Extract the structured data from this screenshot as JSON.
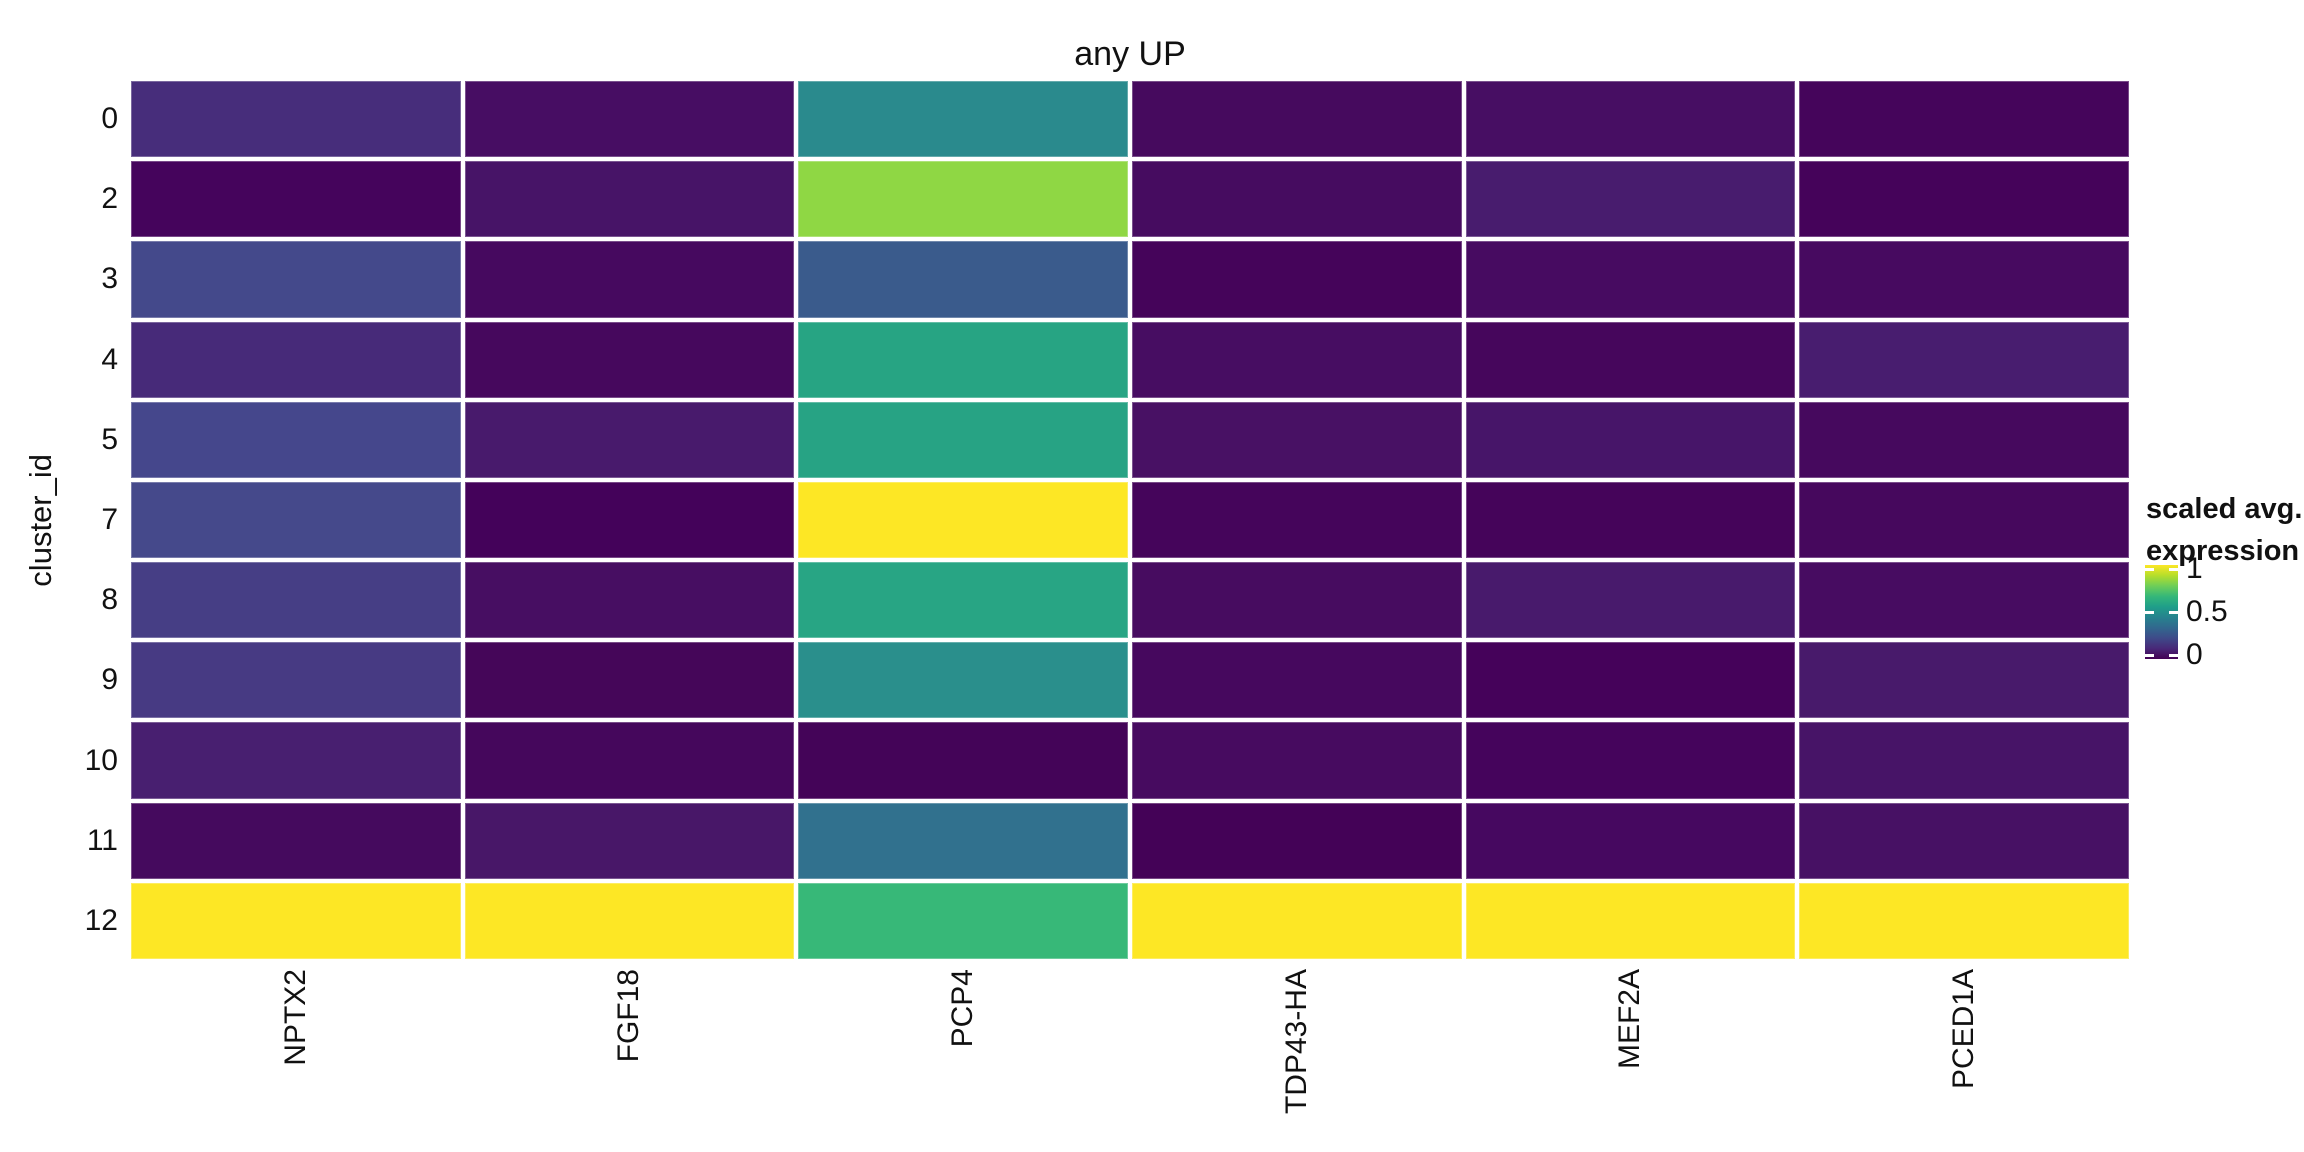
{
  "page": {
    "background": "#ffffff"
  },
  "chart_data": {
    "type": "heatmap",
    "title": "any UP",
    "xlabel": "",
    "ylabel": "cluster_id",
    "colormap": "viridis",
    "rows": [
      "0",
      "2",
      "3",
      "4",
      "5",
      "7",
      "8",
      "9",
      "10",
      "11",
      "12"
    ],
    "columns": [
      "NPTX2",
      "FGF18",
      "PCP4",
      "TDP43-HA",
      "MEF2A",
      "PCED1A"
    ],
    "values": [
      [
        0.14,
        0.05,
        0.46,
        0.03,
        0.05,
        0.01
      ],
      [
        0.01,
        0.07,
        0.82,
        0.04,
        0.1,
        0.01
      ],
      [
        0.24,
        0.03,
        0.3,
        0.01,
        0.03,
        0.03
      ],
      [
        0.13,
        0.02,
        0.6,
        0.04,
        0.02,
        0.1
      ],
      [
        0.23,
        0.09,
        0.6,
        0.06,
        0.07,
        0.03
      ],
      [
        0.24,
        0.005,
        1.0,
        0.01,
        0.01,
        0.02
      ],
      [
        0.19,
        0.05,
        0.6,
        0.04,
        0.09,
        0.04
      ],
      [
        0.18,
        0.02,
        0.48,
        0.02,
        0.005,
        0.09
      ],
      [
        0.1,
        0.02,
        0.01,
        0.03,
        0.01,
        0.07
      ],
      [
        0.04,
        0.08,
        0.38,
        0.005,
        0.03,
        0.05
      ],
      [
        1.0,
        1.0,
        0.68,
        1.0,
        1.0,
        1.0
      ]
    ],
    "cell_colors": [
      [
        "#472d7b",
        "#470d63",
        "#2a8a8d",
        "#460a5e",
        "#470e63",
        "#45055b"
      ],
      [
        "#45045c",
        "#471467",
        "#8fd744",
        "#460c60",
        "#481c6e",
        "#45035a"
      ],
      [
        "#44498b",
        "#46095f",
        "#3a5b8c",
        "#45045a",
        "#470b61",
        "#470a60"
      ],
      [
        "#472a79",
        "#46085d",
        "#27a483",
        "#470d62",
        "#46065c",
        "#481d6f"
      ],
      [
        "#45478c",
        "#481a6c",
        "#27a384",
        "#481164",
        "#471569",
        "#46095e"
      ],
      [
        "#45498b",
        "#44025a",
        "#fde725",
        "#45055b",
        "#45045a",
        "#46085d"
      ],
      [
        "#463e85",
        "#470e62",
        "#28a584",
        "#470c60",
        "#481a6c",
        "#470c61"
      ],
      [
        "#473a83",
        "#450659",
        "#2a8f8c",
        "#46085e",
        "#45025a",
        "#481a6b"
      ],
      [
        "#481f70",
        "#45075c",
        "#440458",
        "#470b60",
        "#45045c",
        "#471467"
      ],
      [
        "#450a5e",
        "#481768",
        "#31718e",
        "#440257",
        "#460860",
        "#471164"
      ],
      [
        "#fde725",
        "#fde725",
        "#37b878",
        "#fde725",
        "#fde725",
        "#fde725"
      ]
    ],
    "color_scale": {
      "min": 0,
      "max": 1,
      "min_color": "#440154",
      "max_color": "#fde725"
    },
    "legend": {
      "title_line1": "scaled avg.",
      "title_line2": "expression",
      "ticks": [
        "1",
        "0.5",
        "0"
      ],
      "tick_values": [
        1,
        0.5,
        0
      ],
      "gradient_bottom_to_top": [
        "#440154",
        "#482878",
        "#3e4a89",
        "#31688e",
        "#26828e",
        "#1f9e89",
        "#35b779",
        "#6ece58",
        "#b5de2b",
        "#fde725"
      ]
    },
    "layout_hints": {
      "grid": "white 4px gaps between tiles",
      "legend_position": "right",
      "x_tick_rotation": 90,
      "axis_ranges": "rows 0-12, scaled expression 0-1"
    }
  }
}
